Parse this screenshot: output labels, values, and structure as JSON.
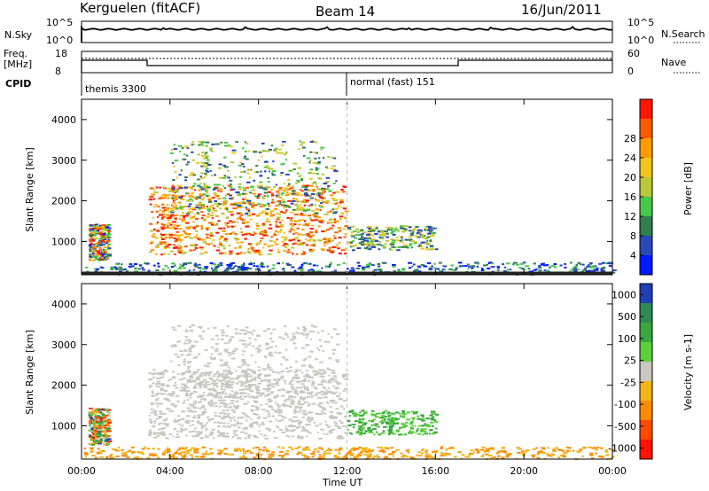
{
  "header": {
    "station": "Kerguelen (fitACF)",
    "beam": "Beam 14",
    "date": "16/Jun/2011"
  },
  "nsky_panel": {
    "label": "N.Sky",
    "left_ticks": [
      "10^5",
      "10^0"
    ],
    "right_ticks": [
      "10^5",
      "10^0"
    ],
    "right_label": "N.Search"
  },
  "freq_panel": {
    "label_line1": "Freq.",
    "label_line2": "[MHz]",
    "left_ticks": [
      "18",
      "8"
    ],
    "right_ticks": [
      "60",
      "0"
    ],
    "right_label": "Nave"
  },
  "cpid": {
    "label": "CPID",
    "segments": [
      {
        "name": "themis 3300",
        "start_hour": 0
      },
      {
        "name": "normal (fast) 151",
        "start_hour": 12
      }
    ]
  },
  "chart_data": [
    {
      "type": "heatmap",
      "panel": "power",
      "xlabel": "Time UT",
      "ylabel": "Slant Range [km]",
      "xlim_hours": [
        0,
        24
      ],
      "ylim_km": [
        180,
        4500
      ],
      "x_ticks": [
        "00:00",
        "04:00",
        "08:00",
        "12:00",
        "16:00",
        "20:00",
        "00:00"
      ],
      "y_ticks": [
        1000,
        2000,
        3000,
        4000
      ],
      "colorbar": {
        "label": "Power [dB]",
        "ticks": [
          4,
          8,
          12,
          16,
          20,
          24,
          28
        ],
        "colors": [
          "#0018ff",
          "#2a48b8",
          "#2f7f4f",
          "#46c84a",
          "#b8c83a",
          "#f2c41d",
          "#ff9a00",
          "#ff5a00",
          "#ff1600"
        ]
      },
      "regions": [
        {
          "t0": 0.3,
          "t1": 1.2,
          "r0": 550,
          "r1": 1450,
          "level": "mixed"
        },
        {
          "t0": 3.0,
          "t1": 11.9,
          "r0": 700,
          "r1": 2400,
          "level": "high"
        },
        {
          "t0": 4.0,
          "t1": 11.5,
          "r0": 1700,
          "r1": 3500,
          "level": "medium"
        },
        {
          "t0": 12.0,
          "t1": 16.0,
          "r0": 800,
          "r1": 1400,
          "level": "medium"
        },
        {
          "t0": 0,
          "t1": 24,
          "r0": 200,
          "r1": 500,
          "level": "low"
        }
      ]
    },
    {
      "type": "heatmap",
      "panel": "velocity",
      "xlabel": "Time UT",
      "ylabel": "Slant Range [km]",
      "xlim_hours": [
        0,
        24
      ],
      "ylim_km": [
        180,
        4500
      ],
      "x_ticks": [
        "00:00",
        "04:00",
        "08:00",
        "12:00",
        "16:00",
        "20:00",
        "00:00"
      ],
      "y_ticks": [
        1000,
        2000,
        3000,
        4000
      ],
      "colorbar": {
        "label": "Velocity [m s-1]",
        "ticks": [
          1000,
          500,
          100,
          25,
          -25,
          -100,
          -500,
          -1000
        ],
        "colors": [
          "#1f3fb7",
          "#2f8a55",
          "#39a83f",
          "#5bd03b",
          "#c8c8c0",
          "#f3b417",
          "#ff8c00",
          "#ff4a00",
          "#ff1200"
        ]
      },
      "regions": [
        {
          "t0": 0.3,
          "t1": 1.2,
          "r0": 550,
          "r1": 1450,
          "level": "mixed"
        },
        {
          "t0": 3.0,
          "t1": 11.9,
          "r0": 700,
          "r1": 2400,
          "level": "near-zero"
        },
        {
          "t0": 4.0,
          "t1": 11.5,
          "r0": 1700,
          "r1": 3500,
          "level": "near-zero"
        },
        {
          "t0": 12.0,
          "t1": 16.0,
          "r0": 800,
          "r1": 1400,
          "level": "positive"
        },
        {
          "t0": 0,
          "t1": 24,
          "r0": 200,
          "r1": 500,
          "level": "negative"
        }
      ]
    }
  ]
}
